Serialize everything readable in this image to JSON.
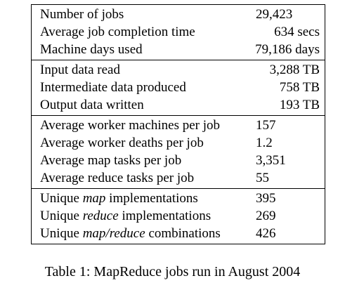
{
  "table": {
    "groups": [
      {
        "rows": [
          {
            "label": "Number of jobs",
            "value": "29,423",
            "align": "left"
          },
          {
            "label": "Average job completion time",
            "value": "634 secs",
            "align": "right"
          },
          {
            "label": "Machine days used",
            "value": "79,186 days",
            "align": "right"
          }
        ]
      },
      {
        "rows": [
          {
            "label": "Input data read",
            "value": "3,288 TB",
            "align": "right"
          },
          {
            "label": "Intermediate data produced",
            "value": "758 TB",
            "align": "right"
          },
          {
            "label": "Output data written",
            "value": "193 TB",
            "align": "right"
          }
        ]
      },
      {
        "rows": [
          {
            "label": "Average worker machines per job",
            "value": "157",
            "align": "left"
          },
          {
            "label": "Average worker deaths per job",
            "value": "1.2",
            "align": "left"
          },
          {
            "label": "Average map tasks per job",
            "value": "3,351",
            "align": "left"
          },
          {
            "label": "Average reduce tasks per job",
            "value": "55",
            "align": "left"
          }
        ]
      },
      {
        "rows": [
          {
            "label_parts": [
              {
                "text": "Unique "
              },
              {
                "text": "map",
                "italic": true
              },
              {
                "text": " implementations"
              }
            ],
            "label": "Unique map implementations",
            "value": "395",
            "align": "left"
          },
          {
            "label_parts": [
              {
                "text": "Unique "
              },
              {
                "text": "reduce",
                "italic": true
              },
              {
                "text": " implementations"
              }
            ],
            "label": "Unique reduce implementations",
            "value": "269",
            "align": "left"
          },
          {
            "label_parts": [
              {
                "text": "Unique "
              },
              {
                "text": "map/reduce",
                "italic": true
              },
              {
                "text": " combinations"
              }
            ],
            "label": "Unique map/reduce combinations",
            "value": "426",
            "align": "left"
          }
        ]
      }
    ]
  },
  "caption": "Table 1: MapReduce jobs run in August 2004"
}
